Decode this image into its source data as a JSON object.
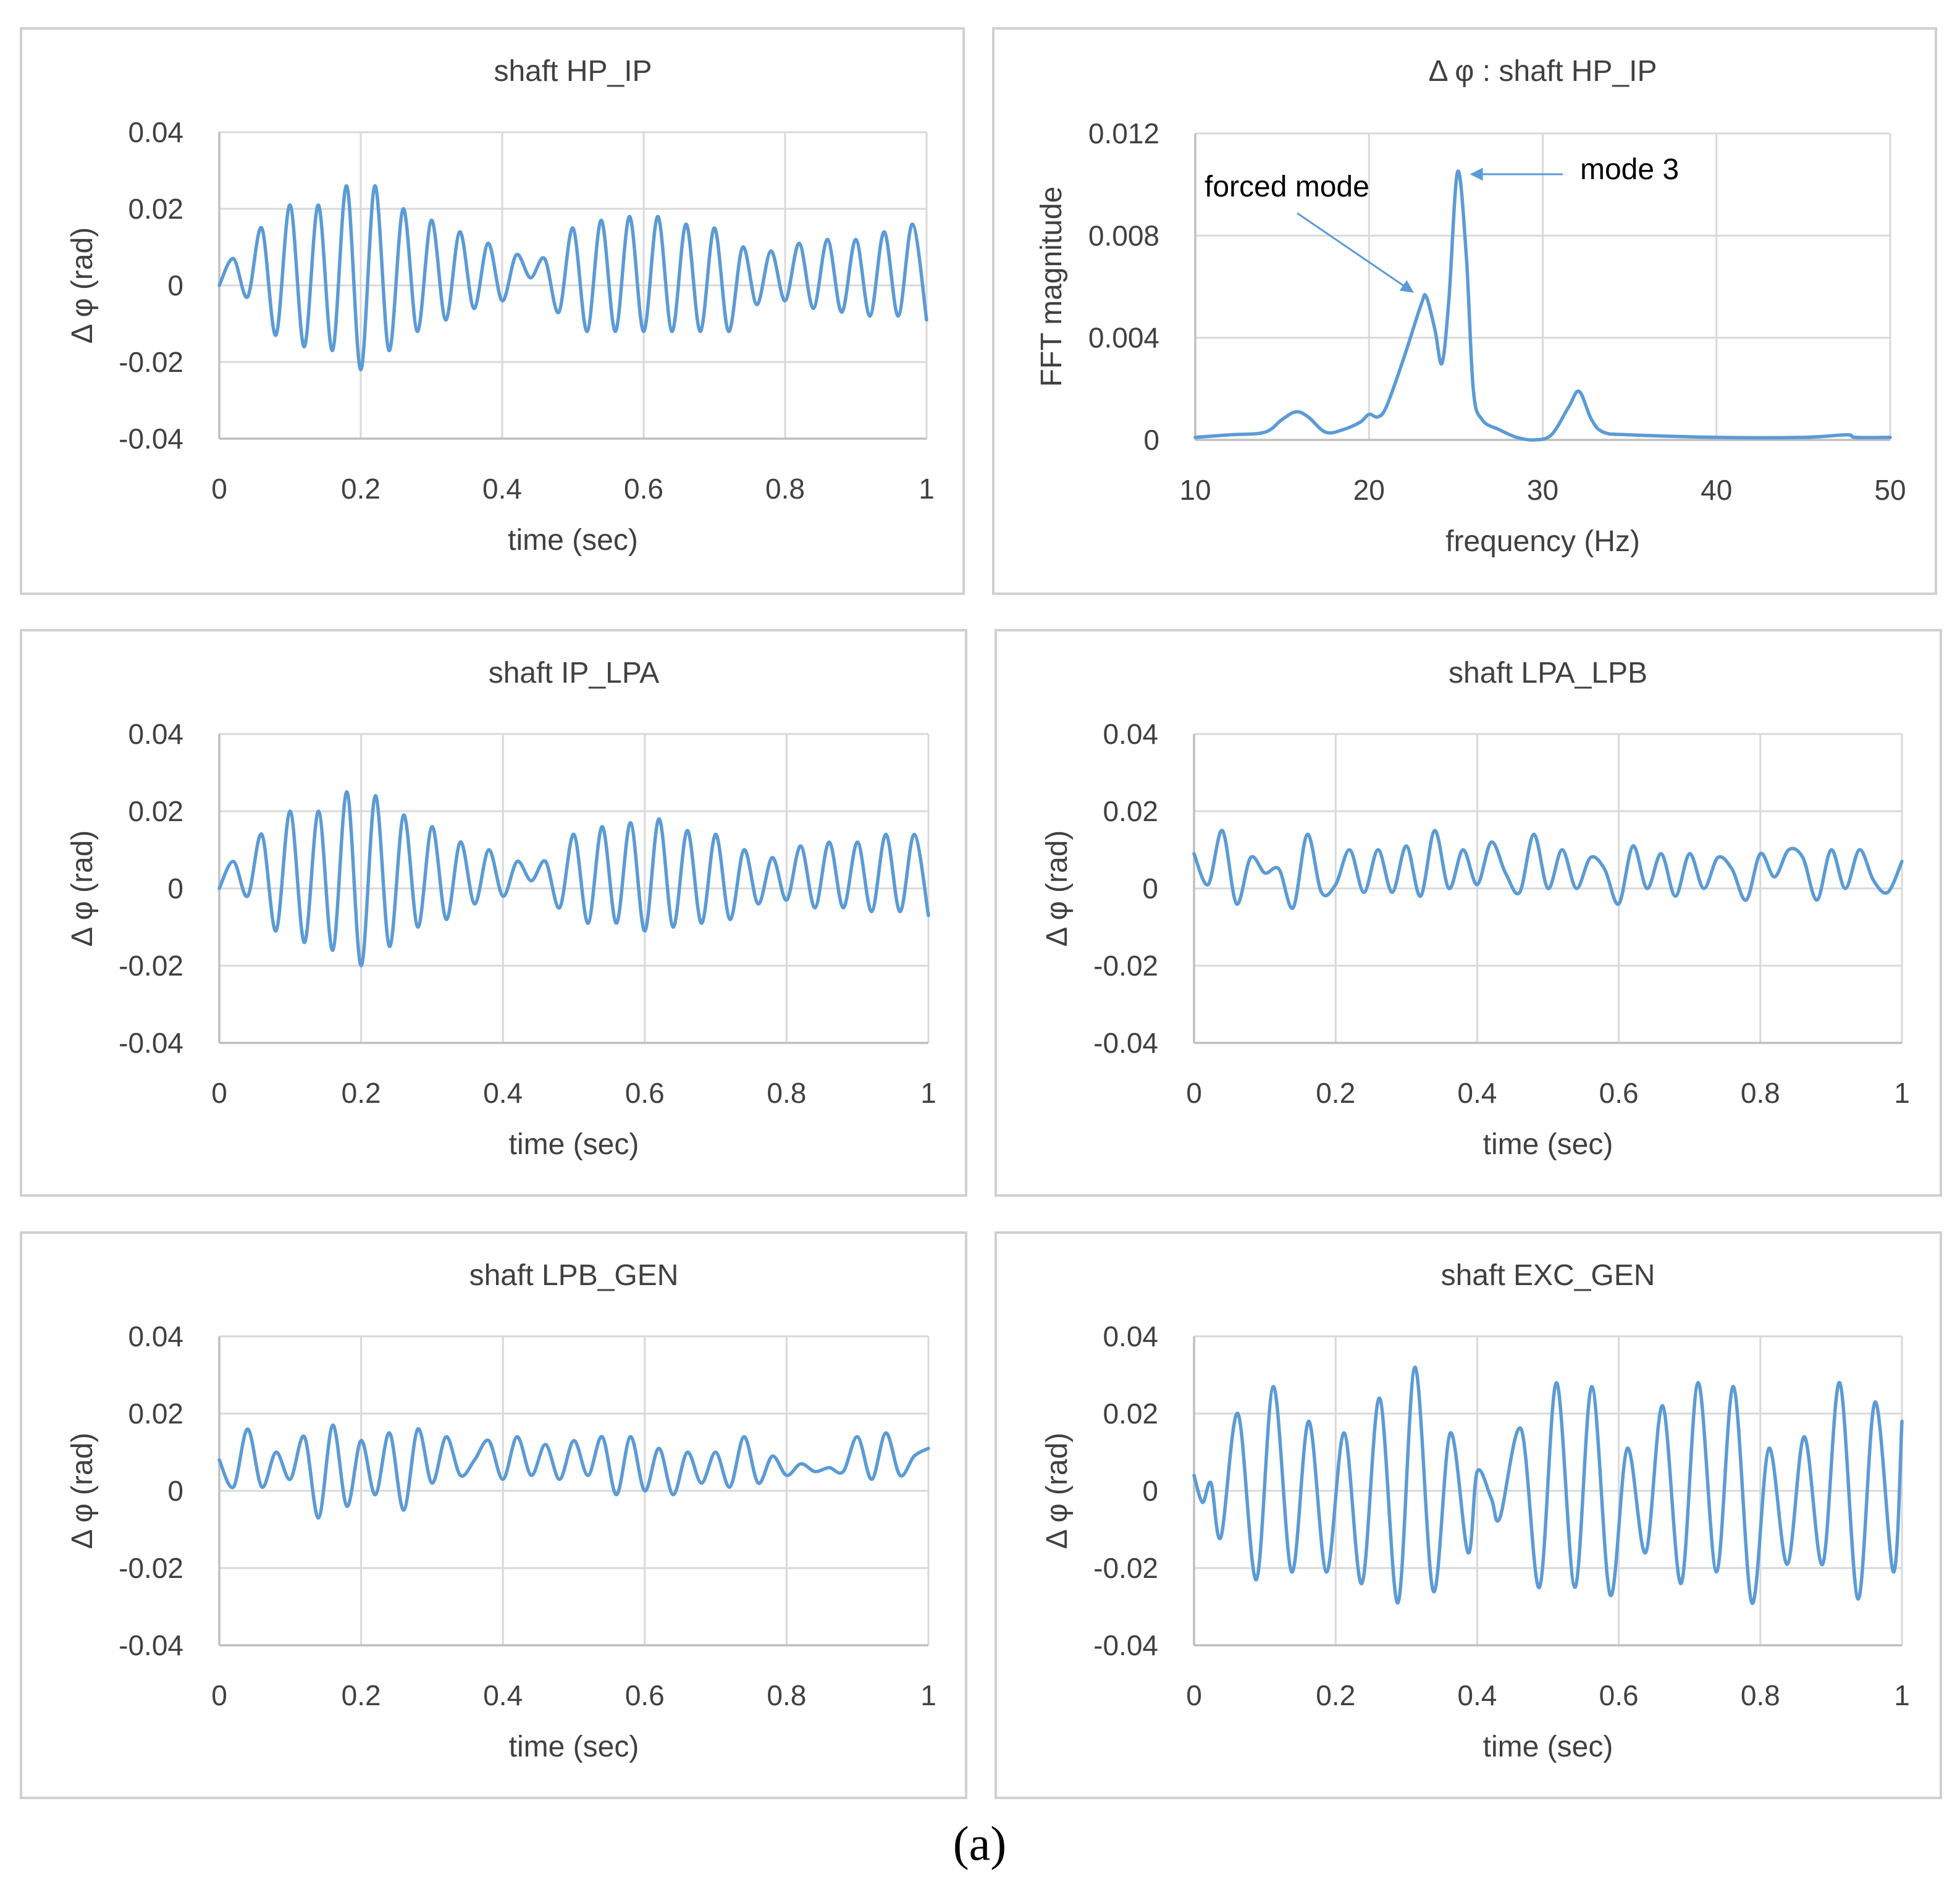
{
  "figure_label": "(a)",
  "colors": {
    "series": "#5b9bd5",
    "annotation_arrow": "#5b9bd5"
  },
  "chart_data": [
    {
      "id": "hp_ip_time",
      "type": "line",
      "title": "shaft HP_IP",
      "xlabel": "time (sec)",
      "ylabel": "Δ φ (rad)",
      "xlim": [
        0,
        1
      ],
      "ylim": [
        -0.04,
        0.04
      ],
      "xticks": [
        0,
        0.2,
        0.4,
        0.6,
        0.8,
        1
      ],
      "xtick_labels": [
        "0",
        "0.2",
        "0.4",
        "0.6",
        "0.8",
        "1"
      ],
      "yticks": [
        0.04,
        0.02,
        0,
        -0.02,
        -0.04
      ],
      "ytick_labels": [
        "0.04",
        "0.02",
        "0",
        "-0.02",
        "-0.04"
      ],
      "series": [
        {
          "name": "Δφ HP_IP",
          "x": [
            0,
            0.02,
            0.04,
            0.06,
            0.08,
            0.1,
            0.12,
            0.14,
            0.16,
            0.18,
            0.2,
            0.22,
            0.24,
            0.26,
            0.28,
            0.3,
            0.32,
            0.34,
            0.36,
            0.38,
            0.4,
            0.42,
            0.44,
            0.46,
            0.48,
            0.5,
            0.52,
            0.54,
            0.56,
            0.58,
            0.6,
            0.62,
            0.64,
            0.66,
            0.68,
            0.7,
            0.72,
            0.74,
            0.76,
            0.78,
            0.8,
            0.82,
            0.84,
            0.86,
            0.88,
            0.9,
            0.92,
            0.94,
            0.96,
            0.98,
            1
          ],
          "y": [
            0,
            0.007,
            -0.003,
            0.015,
            -0.013,
            0.021,
            -0.016,
            0.021,
            -0.017,
            0.026,
            -0.022,
            0.026,
            -0.017,
            0.02,
            -0.012,
            0.017,
            -0.009,
            0.014,
            -0.006,
            0.011,
            -0.004,
            0.008,
            0.002,
            0.007,
            -0.007,
            0.015,
            -0.012,
            0.017,
            -0.012,
            0.018,
            -0.012,
            0.018,
            -0.012,
            0.016,
            -0.012,
            0.015,
            -0.012,
            0.01,
            -0.005,
            0.009,
            -0.004,
            0.011,
            -0.006,
            0.012,
            -0.007,
            0.012,
            -0.008,
            0.014,
            -0.008,
            0.016,
            -0.009
          ]
        }
      ]
    },
    {
      "id": "hp_ip_fft",
      "type": "line",
      "title": "Δ φ : shaft HP_IP",
      "xlabel": "frequency (Hz)",
      "ylabel": "FFT magnitude",
      "xlim": [
        10,
        50
      ],
      "ylim": [
        0,
        0.012
      ],
      "xticks": [
        10,
        20,
        30,
        40,
        50
      ],
      "xtick_labels": [
        "10",
        "20",
        "30",
        "40",
        "50"
      ],
      "yticks": [
        0.012,
        0.008,
        0.004,
        0
      ],
      "ytick_labels": [
        "0.012",
        "0.008",
        "0.004",
        "0"
      ],
      "annotations": [
        {
          "text": "forced mode",
          "points_to": [
            23.3,
            0.0056
          ]
        },
        {
          "text": "mode 3",
          "points_to": [
            25.1,
            0.0105
          ]
        }
      ],
      "series": [
        {
          "name": "FFT magnitude",
          "x": [
            10,
            12,
            14,
            15,
            15.8,
            16.5,
            17.5,
            18.5,
            19.5,
            20,
            20.5,
            21,
            22,
            23,
            23.3,
            23.8,
            24.2,
            24.6,
            25.1,
            25.6,
            26,
            26.5,
            27.5,
            28.5,
            29.5,
            30.5,
            31.5,
            32.1,
            32.8,
            33.5,
            35,
            40,
            45,
            47.5,
            48,
            50
          ],
          "y": [
            0.0001,
            0.0002,
            0.0003,
            0.0008,
            0.0011,
            0.0009,
            0.0003,
            0.0004,
            0.0007,
            0.001,
            0.0009,
            0.0013,
            0.0032,
            0.0053,
            0.0056,
            0.0043,
            0.003,
            0.0055,
            0.0105,
            0.0072,
            0.002,
            0.0008,
            0.0004,
            0.0001,
            0.0,
            0.0002,
            0.0013,
            0.0019,
            0.0008,
            0.0003,
            0.0002,
            0.0001,
            0.0001,
            0.0002,
            0.0001,
            0.0001
          ]
        }
      ]
    },
    {
      "id": "ip_lpa_time",
      "type": "line",
      "title": "shaft IP_LPA",
      "xlabel": "time (sec)",
      "ylabel": "Δ φ (rad)",
      "xlim": [
        0,
        1
      ],
      "ylim": [
        -0.04,
        0.04
      ],
      "xticks": [
        0,
        0.2,
        0.4,
        0.6,
        0.8,
        1
      ],
      "xtick_labels": [
        "0",
        "0.2",
        "0.4",
        "0.6",
        "0.8",
        "1"
      ],
      "yticks": [
        0.04,
        0.02,
        0,
        -0.02,
        -0.04
      ],
      "ytick_labels": [
        "0.04",
        "0.02",
        "0",
        "-0.02",
        "-0.04"
      ],
      "series": [
        {
          "name": "Δφ IP_LPA",
          "x": [
            0,
            0.02,
            0.04,
            0.06,
            0.08,
            0.1,
            0.12,
            0.14,
            0.16,
            0.18,
            0.2,
            0.22,
            0.24,
            0.26,
            0.28,
            0.3,
            0.32,
            0.34,
            0.36,
            0.38,
            0.4,
            0.42,
            0.44,
            0.46,
            0.48,
            0.5,
            0.52,
            0.54,
            0.56,
            0.58,
            0.6,
            0.62,
            0.64,
            0.66,
            0.68,
            0.7,
            0.72,
            0.74,
            0.76,
            0.78,
            0.8,
            0.82,
            0.84,
            0.86,
            0.88,
            0.9,
            0.92,
            0.94,
            0.96,
            0.98,
            1
          ],
          "y": [
            0,
            0.007,
            -0.002,
            0.014,
            -0.011,
            0.02,
            -0.014,
            0.02,
            -0.016,
            0.025,
            -0.02,
            0.024,
            -0.015,
            0.019,
            -0.01,
            0.016,
            -0.008,
            0.012,
            -0.004,
            0.01,
            -0.002,
            0.007,
            0.002,
            0.007,
            -0.005,
            0.014,
            -0.009,
            0.016,
            -0.009,
            0.017,
            -0.011,
            0.018,
            -0.01,
            0.015,
            -0.009,
            0.014,
            -0.008,
            0.01,
            -0.004,
            0.008,
            -0.003,
            0.011,
            -0.005,
            0.012,
            -0.005,
            0.012,
            -0.006,
            0.014,
            -0.006,
            0.014,
            -0.007
          ]
        }
      ]
    },
    {
      "id": "lpa_lpb_time",
      "type": "line",
      "title": "shaft LPA_LPB",
      "xlabel": "time (sec)",
      "ylabel": "Δ φ (rad)",
      "xlim": [
        0,
        1
      ],
      "ylim": [
        -0.04,
        0.04
      ],
      "xticks": [
        0,
        0.2,
        0.4,
        0.6,
        0.8,
        1
      ],
      "xtick_labels": [
        "0",
        "0.2",
        "0.4",
        "0.6",
        "0.8",
        "1"
      ],
      "yticks": [
        0.04,
        0.02,
        0,
        -0.02,
        -0.04
      ],
      "ytick_labels": [
        "0.04",
        "0.02",
        "0",
        "-0.02",
        "-0.04"
      ],
      "series": [
        {
          "name": "Δφ LPA_LPB",
          "x": [
            0,
            0.02,
            0.04,
            0.06,
            0.08,
            0.1,
            0.12,
            0.14,
            0.16,
            0.18,
            0.2,
            0.22,
            0.24,
            0.26,
            0.28,
            0.3,
            0.32,
            0.34,
            0.36,
            0.38,
            0.4,
            0.42,
            0.44,
            0.46,
            0.48,
            0.5,
            0.52,
            0.54,
            0.56,
            0.58,
            0.6,
            0.62,
            0.64,
            0.66,
            0.68,
            0.7,
            0.72,
            0.74,
            0.76,
            0.78,
            0.8,
            0.82,
            0.84,
            0.86,
            0.88,
            0.9,
            0.92,
            0.94,
            0.96,
            0.98,
            1
          ],
          "y": [
            0.009,
            0.001,
            0.015,
            -0.004,
            0.008,
            0.004,
            0.005,
            -0.005,
            0.014,
            -0.001,
            0.001,
            0.01,
            -0.001,
            0.01,
            -0.001,
            0.011,
            -0.002,
            0.015,
            0,
            0.01,
            0.001,
            0.012,
            0.004,
            -0.001,
            0.014,
            0,
            0.01,
            0,
            0.008,
            0.005,
            -0.004,
            0.011,
            0,
            0.009,
            -0.002,
            0.009,
            0,
            0.008,
            0.005,
            -0.003,
            0.009,
            0.003,
            0.01,
            0.008,
            -0.003,
            0.01,
            0,
            0.01,
            0.002,
            -0.001,
            0.007
          ]
        }
      ]
    },
    {
      "id": "lpb_gen_time",
      "type": "line",
      "title": "shaft LPB_GEN",
      "xlabel": "time (sec)",
      "ylabel": "Δ φ (rad)",
      "xlim": [
        0,
        1
      ],
      "ylim": [
        -0.04,
        0.04
      ],
      "xticks": [
        0,
        0.2,
        0.4,
        0.6,
        0.8,
        1
      ],
      "xtick_labels": [
        "0",
        "0.2",
        "0.4",
        "0.6",
        "0.8",
        "1"
      ],
      "yticks": [
        0.04,
        0.02,
        0,
        -0.02,
        -0.04
      ],
      "ytick_labels": [
        "0.04",
        "0.02",
        "0",
        "-0.02",
        "-0.04"
      ],
      "series": [
        {
          "name": "Δφ LPB_GEN",
          "x": [
            0,
            0.02,
            0.04,
            0.06,
            0.08,
            0.1,
            0.12,
            0.14,
            0.16,
            0.18,
            0.2,
            0.22,
            0.24,
            0.26,
            0.28,
            0.3,
            0.32,
            0.34,
            0.36,
            0.38,
            0.4,
            0.42,
            0.44,
            0.46,
            0.48,
            0.5,
            0.52,
            0.54,
            0.56,
            0.58,
            0.6,
            0.62,
            0.64,
            0.66,
            0.68,
            0.7,
            0.72,
            0.74,
            0.76,
            0.78,
            0.8,
            0.82,
            0.84,
            0.86,
            0.88,
            0.9,
            0.92,
            0.94,
            0.96,
            0.98,
            1
          ],
          "y": [
            0.008,
            0.001,
            0.016,
            0.001,
            0.01,
            0.003,
            0.014,
            -0.007,
            0.017,
            -0.004,
            0.013,
            -0.001,
            0.015,
            -0.005,
            0.016,
            0.002,
            0.014,
            0.004,
            0.008,
            0.013,
            0.003,
            0.014,
            0.004,
            0.012,
            0.003,
            0.013,
            0.004,
            0.014,
            -0.001,
            0.014,
            0,
            0.011,
            -0.001,
            0.01,
            0.002,
            0.01,
            0.001,
            0.014,
            0.002,
            0.009,
            0.004,
            0.007,
            0.005,
            0.006,
            0.005,
            0.014,
            0.003,
            0.015,
            0.004,
            0.009,
            0.011
          ]
        }
      ]
    },
    {
      "id": "exc_gen_time",
      "type": "line",
      "title": "shaft EXC_GEN",
      "xlabel": "time (sec)",
      "ylabel": "Δ φ (rad)",
      "xlim": [
        0,
        1
      ],
      "ylim": [
        -0.04,
        0.04
      ],
      "xticks": [
        0,
        0.2,
        0.4,
        0.6,
        0.8,
        1
      ],
      "xtick_labels": [
        "0",
        "0.2",
        "0.4",
        "0.6",
        "0.8",
        "1"
      ],
      "yticks": [
        0.04,
        0.02,
        0,
        -0.02,
        -0.04
      ],
      "ytick_labels": [
        "0.04",
        "0.02",
        "0",
        "-0.02",
        "-0.04"
      ],
      "series": [
        {
          "name": "Δφ EXC_GEN",
          "x": [
            0,
            0.012,
            0.024,
            0.038,
            0.062,
            0.088,
            0.112,
            0.138,
            0.162,
            0.187,
            0.212,
            0.237,
            0.262,
            0.288,
            0.312,
            0.338,
            0.362,
            0.387,
            0.4,
            0.42,
            0.432,
            0.462,
            0.488,
            0.512,
            0.538,
            0.562,
            0.588,
            0.612,
            0.638,
            0.662,
            0.688,
            0.712,
            0.738,
            0.762,
            0.788,
            0.812,
            0.838,
            0.862,
            0.888,
            0.912,
            0.938,
            0.962,
            0.988,
            1
          ],
          "y": [
            0.004,
            -0.003,
            0.002,
            -0.012,
            0.02,
            -0.023,
            0.027,
            -0.021,
            0.018,
            -0.021,
            0.015,
            -0.024,
            0.024,
            -0.029,
            0.032,
            -0.026,
            0.015,
            -0.016,
            0.005,
            -0.002,
            -0.007,
            0.016,
            -0.025,
            0.028,
            -0.025,
            0.027,
            -0.027,
            0.011,
            -0.016,
            0.022,
            -0.024,
            0.028,
            -0.021,
            0.027,
            -0.029,
            0.011,
            -0.019,
            0.014,
            -0.019,
            0.028,
            -0.028,
            0.023,
            -0.021,
            0.018
          ]
        }
      ]
    }
  ]
}
